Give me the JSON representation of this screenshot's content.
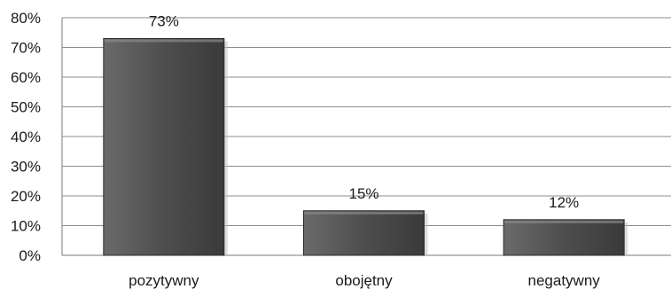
{
  "chart_data": {
    "type": "bar",
    "categories": [
      "pozytywny",
      "obojętny",
      "negatywny"
    ],
    "values": [
      73,
      15,
      12
    ],
    "data_labels": [
      "73%",
      "15%",
      "12%"
    ],
    "y_ticks": [
      "0%",
      "10%",
      "20%",
      "30%",
      "40%",
      "50%",
      "60%",
      "70%",
      "80%"
    ],
    "y_tick_values": [
      0,
      10,
      20,
      30,
      40,
      50,
      60,
      70,
      80
    ],
    "ylim": [
      0,
      80
    ],
    "title": "",
    "xlabel": "",
    "ylabel": "",
    "grid": true,
    "legend": "none",
    "colors": {
      "bar_top": "#6a6a6a",
      "bar_mid": "#4e4e4e",
      "bar_bottom": "#3a3a3a",
      "bar_edge": "#2a2a2a",
      "grid": "#8c8c8c",
      "axis": "#7a7a7a"
    }
  }
}
